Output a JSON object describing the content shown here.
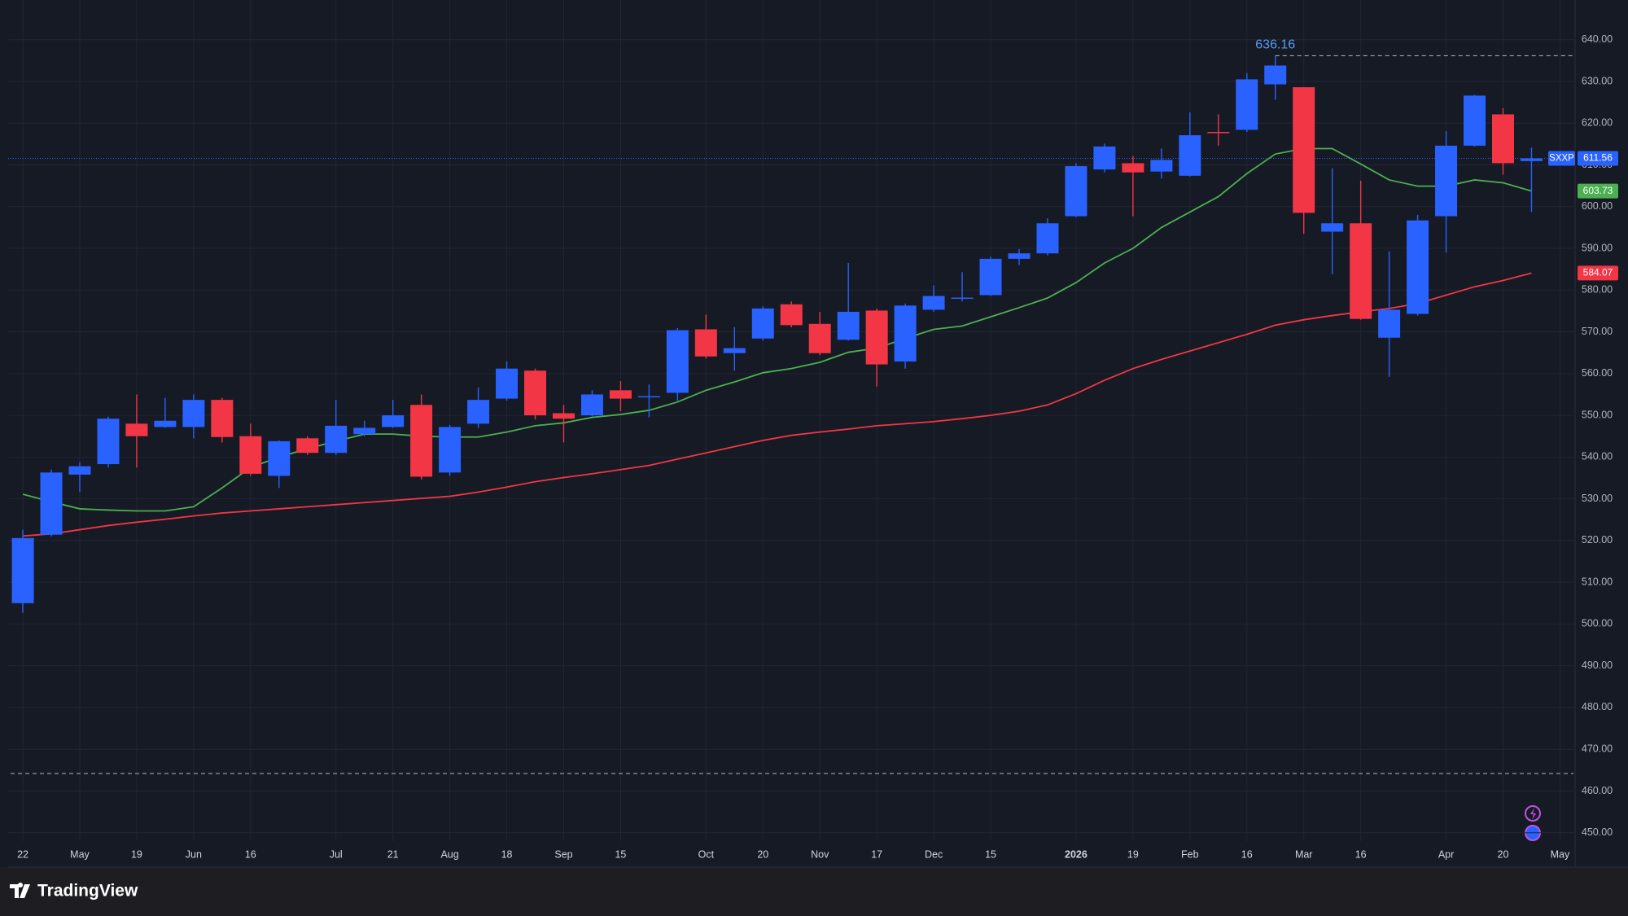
{
  "chart_data": {
    "type": "candlestick",
    "symbol": "SXXP",
    "categories": [
      "22",
      null,
      "May",
      null,
      "19",
      null,
      "Jun",
      null,
      "16",
      null,
      null,
      "Jul",
      null,
      "21",
      null,
      "Aug",
      null,
      "18",
      null,
      "Sep",
      null,
      "15",
      null,
      null,
      "Oct",
      null,
      "20",
      null,
      "Nov",
      null,
      "17",
      null,
      "Dec",
      null,
      "15",
      null,
      null,
      "2026",
      null,
      "19",
      null,
      "Feb",
      null,
      "16",
      null,
      "Mar",
      null,
      "16",
      null,
      null,
      "Apr",
      null,
      "20",
      null,
      "May"
    ],
    "open": [
      505.0,
      521.4,
      535.8,
      538.3,
      548.0,
      547.2,
      547.2,
      553.7,
      545.0,
      535.5,
      544.5,
      541.0,
      545.5,
      547.2,
      552.5,
      536.3,
      548.0,
      554.0,
      560.7,
      550.5,
      550.0,
      556.0,
      554.4,
      555.4,
      570.6,
      564.9,
      568.4,
      576.6,
      571.9,
      568.1,
      575.1,
      562.9,
      575.3,
      578.0,
      578.8,
      587.5,
      588.8,
      597.7,
      608.9,
      610.4,
      608.4,
      607.4,
      617.9,
      618.4,
      629.3,
      628.6,
      594.0,
      596.0,
      568.6,
      574.3,
      597.7,
      614.6,
      622.1,
      610.9,
      null
    ],
    "high": [
      522.6,
      537.0,
      538.8,
      549.7,
      555.0,
      554.2,
      555.0,
      554.2,
      548.0,
      544.0,
      545.0,
      553.7,
      548.7,
      553.7,
      555.0,
      547.7,
      556.7,
      562.9,
      561.2,
      552.5,
      556.0,
      558.2,
      557.4,
      570.9,
      574.1,
      571.1,
      576.1,
      577.3,
      574.8,
      586.5,
      575.6,
      576.8,
      581.1,
      584.3,
      588.0,
      589.8,
      597.2,
      610.4,
      615.1,
      612.1,
      613.9,
      622.6,
      622.1,
      632.0,
      636.16,
      628.6,
      609.2,
      606.2,
      589.3,
      598.0,
      618.1,
      626.8,
      623.6,
      614.1,
      null
    ],
    "low": [
      502.7,
      521.0,
      531.6,
      537.5,
      537.5,
      547.0,
      544.5,
      543.5,
      535.5,
      532.6,
      540.5,
      540.5,
      545.0,
      547.0,
      534.6,
      535.5,
      547.0,
      553.5,
      549.0,
      543.5,
      549.7,
      551.0,
      549.5,
      553.5,
      563.6,
      560.7,
      567.9,
      571.1,
      564.4,
      567.9,
      556.9,
      561.2,
      574.8,
      577.3,
      578.6,
      586.0,
      588.3,
      597.5,
      608.2,
      597.7,
      606.7,
      607.2,
      614.6,
      617.9,
      625.6,
      593.5,
      583.8,
      572.9,
      559.2,
      573.9,
      589.0,
      614.4,
      607.7,
      598.7,
      null
    ],
    "close": [
      520.6,
      536.3,
      537.8,
      549.2,
      545.0,
      548.7,
      553.7,
      544.8,
      536.0,
      543.8,
      541.0,
      547.5,
      547.0,
      550.0,
      535.3,
      547.2,
      553.7,
      561.2,
      550.0,
      549.2,
      555.0,
      554.0,
      554.6,
      570.4,
      564.1,
      566.1,
      575.6,
      571.6,
      564.9,
      574.8,
      562.2,
      576.3,
      578.6,
      578.2,
      587.5,
      588.8,
      596.0,
      609.7,
      614.4,
      608.2,
      611.2,
      617.1,
      617.6,
      630.5,
      633.8,
      598.5,
      596.0,
      573.1,
      575.3,
      596.7,
      614.6,
      626.6,
      610.4,
      611.56,
      null
    ],
    "up_color": "#2962ff",
    "down_color": "#f23645",
    "moving_averages": [
      {
        "color": "#4caf50",
        "values": [
          531.1,
          529.3,
          527.6,
          527.3,
          527.1,
          527.1,
          528.1,
          532.6,
          537.5,
          540.0,
          542.0,
          543.8,
          545.5,
          545.5,
          545.0,
          544.8,
          544.8,
          546.0,
          547.5,
          548.2,
          549.5,
          550.2,
          551.2,
          553.2,
          556.0,
          558.0,
          560.2,
          561.2,
          562.7,
          565.1,
          566.1,
          568.4,
          570.6,
          571.4,
          573.6,
          575.8,
          578.1,
          581.8,
          586.5,
          590.0,
          595.0,
          598.7,
          602.4,
          607.9,
          612.6,
          613.9,
          613.9,
          610.2,
          606.4,
          604.9,
          604.9,
          606.4,
          605.7,
          603.73,
          null
        ]
      },
      {
        "color": "#f23645",
        "values": [
          521.1,
          521.6,
          522.6,
          523.6,
          524.4,
          525.1,
          525.9,
          526.6,
          527.1,
          527.6,
          528.1,
          528.6,
          529.1,
          529.6,
          530.1,
          530.6,
          531.6,
          532.8,
          534.1,
          535.1,
          536.0,
          537.0,
          538.0,
          539.5,
          541.0,
          542.5,
          544.0,
          545.2,
          546.0,
          546.7,
          547.5,
          548.0,
          548.5,
          549.2,
          550.0,
          551.0,
          552.5,
          555.2,
          558.4,
          561.2,
          563.4,
          565.4,
          567.4,
          569.4,
          571.6,
          572.9,
          573.9,
          574.8,
          575.6,
          576.8,
          578.8,
          580.8,
          582.3,
          584.07,
          null
        ]
      }
    ],
    "reference_line": 464.2,
    "ylim": [
      448.0,
      649.5
    ],
    "yticks": [
      {
        "value": 450,
        "label": "450.00"
      },
      {
        "value": 460,
        "label": "460.00"
      },
      {
        "value": 470,
        "label": "470.00"
      },
      {
        "value": 480,
        "label": "480.00"
      },
      {
        "value": 490,
        "label": "490.00"
      },
      {
        "value": 500,
        "label": "500.00"
      },
      {
        "value": 510,
        "label": "510.00"
      },
      {
        "value": 520,
        "label": "520.00"
      },
      {
        "value": 530,
        "label": "530.00"
      },
      {
        "value": 540,
        "label": "540.00"
      },
      {
        "value": 550,
        "label": "550.00"
      },
      {
        "value": 560,
        "label": "560.00"
      },
      {
        "value": 570,
        "label": "570.00"
      },
      {
        "value": 580,
        "label": "580.00"
      },
      {
        "value": 590,
        "label": "590.00"
      },
      {
        "value": 600,
        "label": "600.00"
      },
      {
        "value": 610,
        "label": "610.00"
      },
      {
        "value": 620,
        "label": "620.00"
      },
      {
        "value": 630,
        "label": "630.00"
      },
      {
        "value": 640,
        "label": "640.00"
      }
    ],
    "grid": true
  },
  "brand": "TradingView"
}
